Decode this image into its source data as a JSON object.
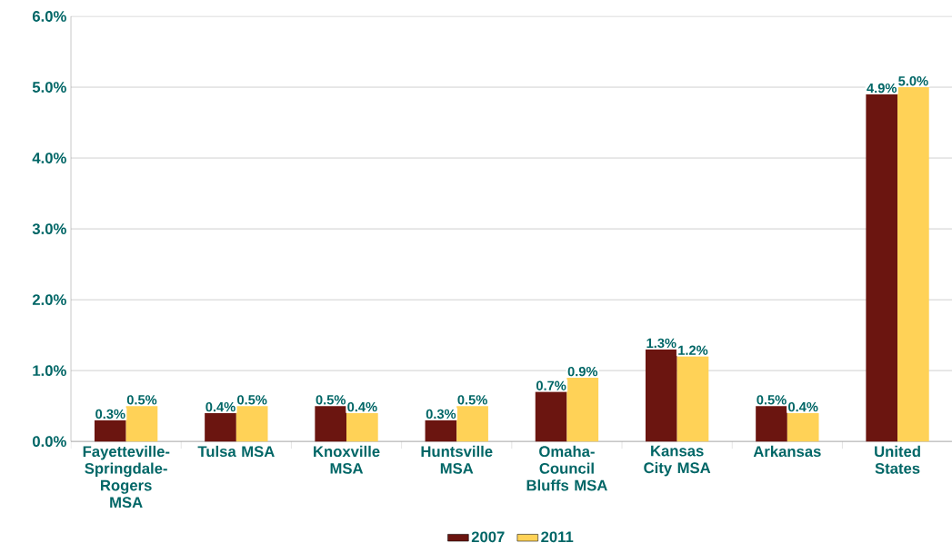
{
  "chart_data": {
    "type": "bar",
    "categories": [
      "Fayetteville-Springdale-Rogers MSA",
      "Tulsa MSA",
      "Knoxville MSA",
      "Huntsville MSA",
      "Omaha-Council Bluffs MSA",
      "Kansas City MSA",
      "Arkansas",
      "United States"
    ],
    "series": [
      {
        "name": "2007",
        "color": "#6b1510",
        "values": [
          0.3,
          0.4,
          0.5,
          0.3,
          0.7,
          1.3,
          0.5,
          4.9
        ],
        "value_labels": [
          "0.3%",
          "0.4%",
          "0.5%",
          "0.3%",
          "0.7%",
          "1.3%",
          "0.5%",
          "4.9%"
        ]
      },
      {
        "name": "2011",
        "color": "#ffd257",
        "values": [
          0.5,
          0.5,
          0.4,
          0.5,
          0.9,
          1.2,
          0.4,
          5.0
        ],
        "value_labels": [
          "0.5%",
          "0.5%",
          "0.4%",
          "0.5%",
          "0.9%",
          "1.2%",
          "0.4%",
          "5.0%"
        ]
      }
    ],
    "ylim": [
      0,
      6
    ],
    "yticks": [
      {
        "value": 0,
        "label": "0.0%"
      },
      {
        "value": 1,
        "label": "1.0%"
      },
      {
        "value": 2,
        "label": "2.0%"
      },
      {
        "value": 3,
        "label": "3.0%"
      },
      {
        "value": 4,
        "label": "4.0%"
      },
      {
        "value": 5,
        "label": "5.0%"
      },
      {
        "value": 6,
        "label": "6.0%"
      }
    ],
    "grid": "y",
    "legend": "bottom"
  }
}
